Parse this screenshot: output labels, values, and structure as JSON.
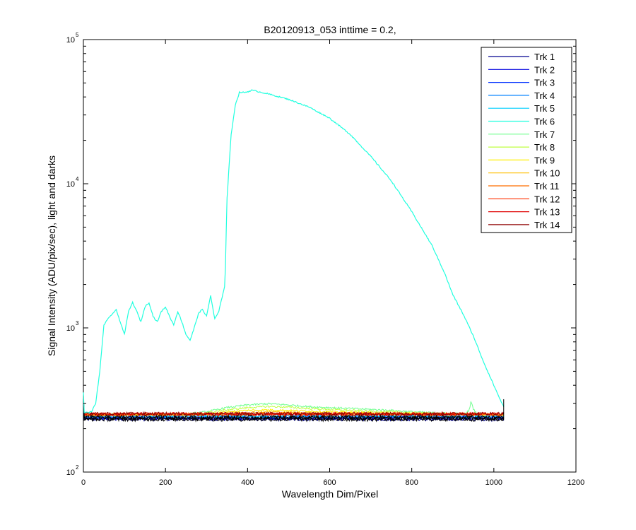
{
  "chart_data": {
    "type": "line",
    "title": "B20120913_053 inttime = 0.2,",
    "xlabel": "Wavelength Dim/Pixel",
    "ylabel": "Signal Intensity (ADU/pix/sec), light and darks",
    "xlim": [
      0,
      1200
    ],
    "ylim": [
      100,
      100000
    ],
    "yscale": "log",
    "grid": false,
    "legend_position": "top-right",
    "x_ticks": [
      0,
      200,
      400,
      600,
      800,
      1000,
      1200
    ],
    "x_tick_labels": [
      "0",
      "200",
      "400",
      "600",
      "800",
      "1000",
      "1200"
    ],
    "y_ticks": [
      100,
      1000,
      10000,
      100000
    ],
    "y_tick_labels": [
      {
        "base": "10",
        "exp": "2"
      },
      {
        "base": "10",
        "exp": "3"
      },
      {
        "base": "10",
        "exp": "4"
      },
      {
        "base": "10",
        "exp": "5"
      }
    ],
    "series": [
      {
        "name": "Trk 1",
        "color": "#00008f",
        "level": 232
      },
      {
        "name": "Trk 2",
        "color": "#0000df",
        "level": 236
      },
      {
        "name": "Trk 3",
        "color": "#0030ff",
        "level": 240
      },
      {
        "name": "Trk 4",
        "color": "#0080ff",
        "level": 243
      },
      {
        "name": "Trk 5",
        "color": "#00cfff",
        "level": 246
      },
      {
        "name": "Trk 6",
        "color": "#20ffdf",
        "level": 250,
        "points": [
          [
            0,
            262
          ],
          [
            10,
            258
          ],
          [
            20,
            262
          ],
          [
            30,
            300
          ],
          [
            40,
            500
          ],
          [
            50,
            1050
          ],
          [
            60,
            1150
          ],
          [
            70,
            1250
          ],
          [
            80,
            1330
          ],
          [
            90,
            1100
          ],
          [
            100,
            900
          ],
          [
            110,
            1300
          ],
          [
            120,
            1500
          ],
          [
            130,
            1300
          ],
          [
            140,
            1100
          ],
          [
            150,
            1400
          ],
          [
            160,
            1500
          ],
          [
            170,
            1200
          ],
          [
            180,
            1100
          ],
          [
            190,
            1300
          ],
          [
            200,
            1400
          ],
          [
            210,
            1200
          ],
          [
            220,
            1050
          ],
          [
            230,
            1300
          ],
          [
            240,
            1100
          ],
          [
            250,
            900
          ],
          [
            260,
            820
          ],
          [
            270,
            1000
          ],
          [
            280,
            1250
          ],
          [
            290,
            1350
          ],
          [
            300,
            1200
          ],
          [
            310,
            1680
          ],
          [
            320,
            1150
          ],
          [
            330,
            1300
          ],
          [
            345,
            2000
          ],
          [
            350,
            8000
          ],
          [
            360,
            22000
          ],
          [
            370,
            35000
          ],
          [
            380,
            43000
          ],
          [
            395,
            43000
          ],
          [
            410,
            44500
          ],
          [
            420,
            44000
          ],
          [
            450,
            42000
          ],
          [
            500,
            38500
          ],
          [
            550,
            34000
          ],
          [
            600,
            28500
          ],
          [
            650,
            22000
          ],
          [
            700,
            15500
          ],
          [
            750,
            10500
          ],
          [
            800,
            6400
          ],
          [
            850,
            3700
          ],
          [
            880,
            2400
          ],
          [
            900,
            1700
          ],
          [
            925,
            1250
          ],
          [
            950,
            880
          ],
          [
            975,
            580
          ],
          [
            1000,
            400
          ],
          [
            1015,
            320
          ],
          [
            1025,
            280
          ]
        ]
      },
      {
        "name": "Trk 7",
        "color": "#70ff8f",
        "level": 250,
        "points": [
          [
            0,
            250
          ],
          [
            250,
            252
          ],
          [
            300,
            262
          ],
          [
            350,
            280
          ],
          [
            400,
            292
          ],
          [
            450,
            298
          ],
          [
            500,
            292
          ],
          [
            550,
            284
          ],
          [
            600,
            280
          ],
          [
            650,
            276
          ],
          [
            700,
            272
          ],
          [
            750,
            268
          ],
          [
            800,
            262
          ],
          [
            850,
            258
          ],
          [
            900,
            255
          ],
          [
            930,
            254
          ],
          [
            940,
            270
          ],
          [
            945,
            312
          ],
          [
            950,
            272
          ],
          [
            960,
            254
          ],
          [
            1000,
            252
          ],
          [
            1025,
            250
          ]
        ]
      },
      {
        "name": "Trk 8",
        "color": "#bfff40",
        "level": 250,
        "points": [
          [
            0,
            250
          ],
          [
            280,
            254
          ],
          [
            350,
            270
          ],
          [
            400,
            280
          ],
          [
            450,
            285
          ],
          [
            500,
            282
          ],
          [
            550,
            276
          ],
          [
            600,
            272
          ],
          [
            650,
            268
          ],
          [
            700,
            264
          ],
          [
            750,
            262
          ],
          [
            800,
            258
          ],
          [
            850,
            255
          ],
          [
            900,
            253
          ],
          [
            1025,
            251
          ]
        ]
      },
      {
        "name": "Trk 9",
        "color": "#ffef00",
        "level": 250,
        "points": [
          [
            0,
            248
          ],
          [
            300,
            252
          ],
          [
            350,
            262
          ],
          [
            400,
            268
          ],
          [
            450,
            270
          ],
          [
            500,
            268
          ],
          [
            600,
            262
          ],
          [
            700,
            258
          ],
          [
            800,
            255
          ],
          [
            900,
            252
          ],
          [
            1025,
            250
          ]
        ]
      },
      {
        "name": "Trk 10",
        "color": "#ffbf00",
        "level": 249,
        "points": [
          [
            0,
            248
          ],
          [
            300,
            250
          ],
          [
            350,
            256
          ],
          [
            450,
            262
          ],
          [
            550,
            258
          ],
          [
            650,
            255
          ],
          [
            800,
            252
          ],
          [
            1025,
            249
          ]
        ]
      },
      {
        "name": "Trk 11",
        "color": "#ff6f00",
        "level": 251
      },
      {
        "name": "Trk 12",
        "color": "#ff3000",
        "level": 252
      },
      {
        "name": "Trk 13",
        "color": "#df0000",
        "level": 253
      },
      {
        "name": "Trk 14",
        "color": "#8f0000",
        "level": 254
      }
    ],
    "darks": {
      "color": "#000000",
      "levels": [
        232,
        236,
        240
      ]
    }
  }
}
